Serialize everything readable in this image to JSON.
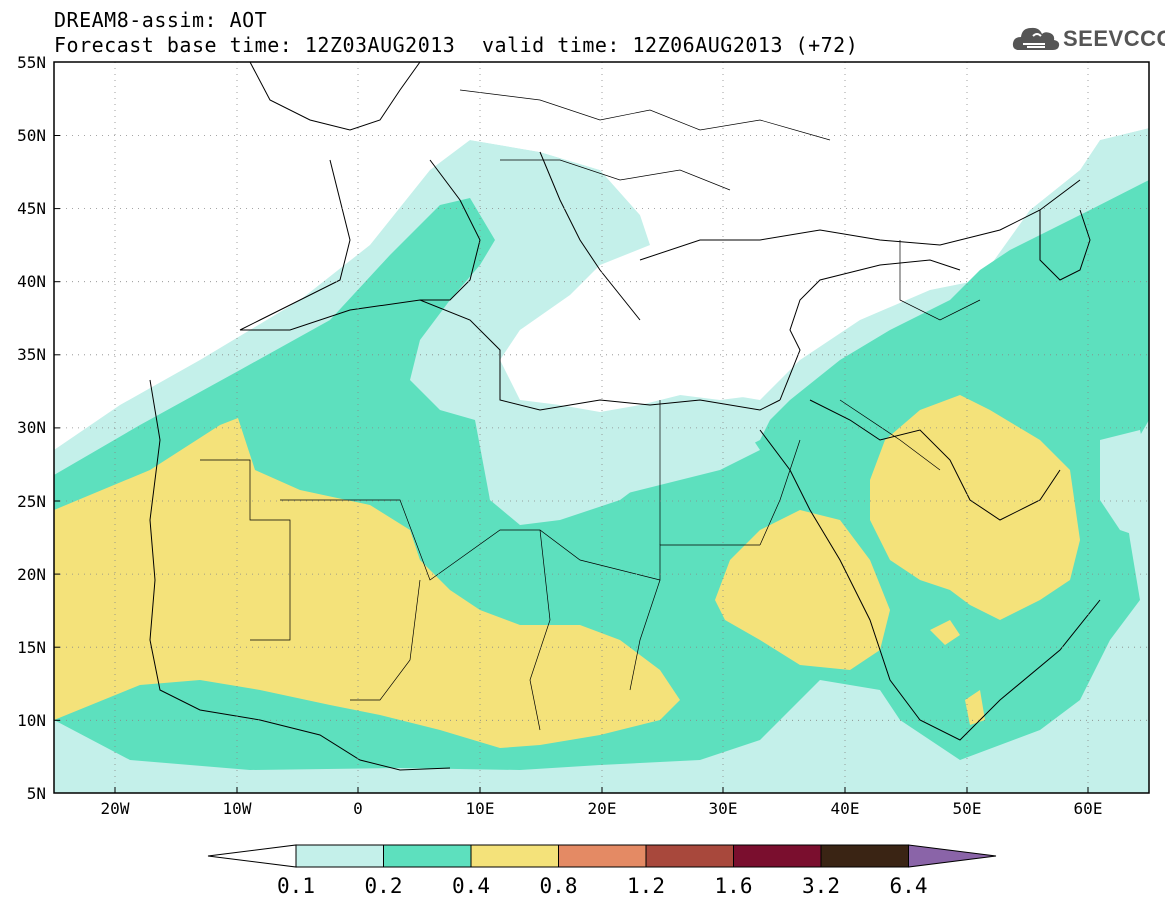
{
  "header": {
    "line1": "DREAM8-assim: AOT",
    "base_time": "Forecast base time: 12Z03AUG2013",
    "valid_time": "valid time: 12Z06AUG2013 (+72)"
  },
  "logo": {
    "text": "SEEVCCC",
    "icon": "cloud-icon",
    "color": "#555555"
  },
  "map": {
    "lat_labels": [
      "55N",
      "50N",
      "45N",
      "40N",
      "35N",
      "30N",
      "25N",
      "20N",
      "15N",
      "10N",
      "5N"
    ],
    "lon_labels": [
      "20W",
      "10W",
      "0",
      "10E",
      "20E",
      "30E",
      "40E",
      "50E",
      "60E"
    ],
    "lon_range": [
      -25,
      65
    ],
    "lat_range": [
      5,
      55
    ],
    "gridlines": "dotted"
  },
  "colorbar": {
    "labels": [
      "0.1",
      "0.2",
      "0.4",
      "0.8",
      "1.2",
      "1.6",
      "3.2",
      "6.4"
    ],
    "colors": [
      "#c4f0ea",
      "#5de0be",
      "#f4e27a",
      "#e48a64",
      "#a8483c",
      "#7a0e2e",
      "#3a2414",
      "#8a64a8"
    ],
    "under_color": "#ffffff",
    "over_color": "#8a64a8"
  }
}
